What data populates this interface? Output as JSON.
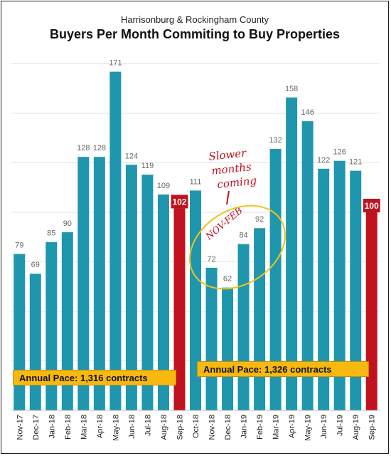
{
  "header": {
    "subtitle": "Harrisonburg & Rockingham County",
    "title": "Buyers Per Month Commiting to Buy Properties"
  },
  "annotations": {
    "pace_1": "Annual Pace: 1,316 contracts",
    "pace_2": "Annual Pace: 1,326 contracts",
    "note_line1": "Slower",
    "note_line2": "months",
    "note_line3": "coming",
    "note_range": "NOV-FEB"
  },
  "colors": {
    "bar": "#1f96ad",
    "highlight": "#c1121f",
    "pace_box": "#f7b90f",
    "circle": "#f0c419"
  },
  "chart_data": {
    "type": "bar",
    "title": "Buyers Per Month Commiting to Buy Properties",
    "categories": [
      "Nov-17",
      "Dec-17",
      "Jan-18",
      "Feb-18",
      "Mar-18",
      "Apr-18",
      "May-18",
      "Jun-18",
      "Jul-18",
      "Aug-18",
      "Sep-18",
      "Oct-18",
      "Nov-18",
      "Dec-18",
      "Jan-19",
      "Feb-19",
      "Mar-19",
      "Apr-19",
      "May-19",
      "Jun-19",
      "Jul-19",
      "Aug-19",
      "Sep-19"
    ],
    "values": [
      79,
      69,
      85,
      90,
      128,
      128,
      171,
      124,
      119,
      109,
      102,
      111,
      72,
      62,
      84,
      92,
      132,
      158,
      146,
      122,
      126,
      121,
      100
    ],
    "highlighted": [
      "Sep-18",
      "Sep-19"
    ],
    "ylim": [
      0,
      180
    ],
    "grid": true
  }
}
